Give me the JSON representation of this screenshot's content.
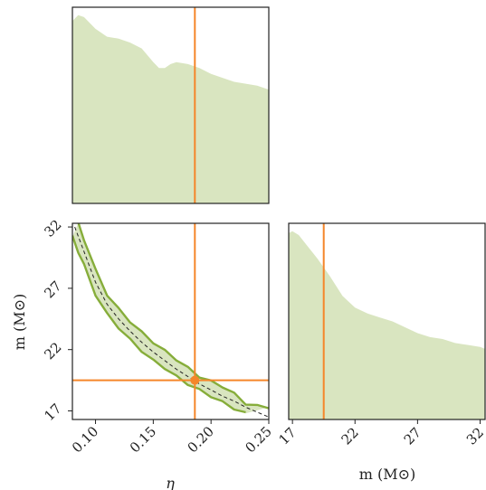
{
  "colors": {
    "fill": "#d9e5c0",
    "contour": "#86ad3a",
    "truth": "#f5862a",
    "median_line": "#222222",
    "frame": "#222222"
  },
  "labels": {
    "eta_axis": "η",
    "mass_axis": "m (M⊙)",
    "mass_axis_x": "m (M⊙)"
  },
  "chart_data": [
    {
      "type": "area",
      "panel": "eta-marginal",
      "x_name": "η",
      "xlim": [
        0.08,
        0.25
      ],
      "x": [
        0.08,
        0.085,
        0.09,
        0.1,
        0.11,
        0.12,
        0.13,
        0.14,
        0.15,
        0.155,
        0.16,
        0.165,
        0.17,
        0.18,
        0.19,
        0.2,
        0.21,
        0.22,
        0.23,
        0.24,
        0.25
      ],
      "y": [
        0.93,
        0.96,
        0.95,
        0.89,
        0.85,
        0.84,
        0.82,
        0.79,
        0.72,
        0.69,
        0.69,
        0.71,
        0.72,
        0.71,
        0.69,
        0.66,
        0.64,
        0.62,
        0.61,
        0.6,
        0.58
      ],
      "truth": 0.186,
      "ticks": []
    },
    {
      "type": "scatter",
      "panel": "joint",
      "x_name": "η",
      "y_name": "m",
      "xlim": [
        0.08,
        0.25
      ],
      "ylim": [
        16.3,
        32.3
      ],
      "xticks": [
        "0.10",
        "0.15",
        "0.20",
        "0.25"
      ],
      "xtick_values": [
        0.1,
        0.15,
        0.2,
        0.25
      ],
      "yticks": [
        "17",
        "22",
        "27",
        "32"
      ],
      "ytick_values": [
        17,
        22,
        27,
        32
      ],
      "contour_upper": [
        [
          0.085,
          32.3
        ],
        [
          0.09,
          31.0
        ],
        [
          0.1,
          28.5
        ],
        [
          0.11,
          26.5
        ],
        [
          0.12,
          25.3
        ],
        [
          0.13,
          24.3
        ],
        [
          0.14,
          23.4
        ],
        [
          0.15,
          22.6
        ],
        [
          0.16,
          21.9
        ],
        [
          0.17,
          21.2
        ],
        [
          0.18,
          20.5
        ],
        [
          0.19,
          19.8
        ],
        [
          0.2,
          19.4
        ],
        [
          0.21,
          19.0
        ],
        [
          0.22,
          18.4
        ],
        [
          0.23,
          17.6
        ],
        [
          0.24,
          17.4
        ],
        [
          0.25,
          17.3
        ]
      ],
      "contour_lower": [
        [
          0.08,
          31.2
        ],
        [
          0.085,
          30.0
        ],
        [
          0.09,
          28.9
        ],
        [
          0.1,
          26.5
        ],
        [
          0.11,
          24.9
        ],
        [
          0.12,
          23.8
        ],
        [
          0.13,
          22.8
        ],
        [
          0.14,
          21.9
        ],
        [
          0.15,
          21.1
        ],
        [
          0.16,
          20.5
        ],
        [
          0.17,
          19.8
        ],
        [
          0.18,
          19.2
        ],
        [
          0.19,
          18.7
        ],
        [
          0.2,
          18.2
        ],
        [
          0.21,
          17.7
        ],
        [
          0.22,
          17.2
        ],
        [
          0.23,
          16.8
        ]
      ],
      "median_curve": [
        [
          0.082,
          32.0
        ],
        [
          0.09,
          30.0
        ],
        [
          0.1,
          27.5
        ],
        [
          0.11,
          25.7
        ],
        [
          0.12,
          24.5
        ],
        [
          0.13,
          23.5
        ],
        [
          0.14,
          22.6
        ],
        [
          0.15,
          21.8
        ],
        [
          0.16,
          21.1
        ],
        [
          0.17,
          20.4
        ],
        [
          0.18,
          19.8
        ],
        [
          0.19,
          19.2
        ],
        [
          0.2,
          18.7
        ],
        [
          0.21,
          18.2
        ],
        [
          0.22,
          17.8
        ],
        [
          0.23,
          17.3
        ],
        [
          0.24,
          16.9
        ],
        [
          0.25,
          16.5
        ]
      ],
      "truth": [
        0.186,
        19.5
      ]
    },
    {
      "type": "area",
      "panel": "mass-marginal",
      "x_name": "m",
      "xlim": [
        16.7,
        32.4
      ],
      "x": [
        16.7,
        17.0,
        17.5,
        18.0,
        19.0,
        20.0,
        21.0,
        22.0,
        23.0,
        24.0,
        25.0,
        26.0,
        27.0,
        28.0,
        29.0,
        30.0,
        31.0,
        32.0,
        32.4
      ],
      "y": [
        0.95,
        0.96,
        0.94,
        0.9,
        0.82,
        0.73,
        0.63,
        0.57,
        0.54,
        0.52,
        0.5,
        0.47,
        0.44,
        0.42,
        0.41,
        0.39,
        0.38,
        0.37,
        0.36
      ],
      "truth": 19.5,
      "xticks": [
        "17",
        "22",
        "27",
        "32"
      ],
      "xtick_values": [
        17,
        22,
        27,
        32
      ]
    }
  ]
}
